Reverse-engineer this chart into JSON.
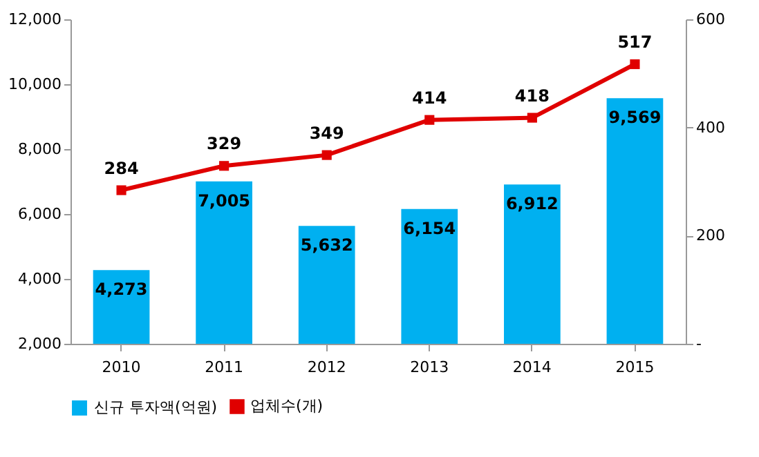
{
  "chart_data": {
    "type": "bar",
    "categories": [
      "2010",
      "2011",
      "2012",
      "2013",
      "2014",
      "2015"
    ],
    "series": [
      {
        "name": "신규 투자액(억원)",
        "color": "#00b0f0",
        "values": [
          4273,
          7005,
          5632,
          6154,
          6912,
          9569
        ],
        "value_labels": [
          "4,273",
          "7,005",
          "5,632",
          "6,154",
          "6,912",
          "9,569"
        ]
      },
      {
        "name": "업체수(개)",
        "type": "line",
        "axis": "y2",
        "color": "#e00000",
        "marker": "square",
        "values": [
          284,
          329,
          349,
          414,
          418,
          517
        ],
        "value_labels": [
          "284",
          "329",
          "349",
          "414",
          "418",
          "517"
        ]
      }
    ],
    "ylim": [
      2000,
      12000
    ],
    "yticks": [
      {
        "value": 2000,
        "label": "2,000"
      },
      {
        "value": 4000,
        "label": "4,000"
      },
      {
        "value": 6000,
        "label": "6,000"
      },
      {
        "value": 8000,
        "label": "8,000"
      },
      {
        "value": 10000,
        "label": "10,000"
      },
      {
        "value": 12000,
        "label": "12,000"
      }
    ],
    "y2lim": [
      0,
      600
    ],
    "y2ticks": [
      {
        "value": 0,
        "label": "-"
      },
      200,
      400,
      600
    ],
    "grid": false,
    "legend": "bottom"
  }
}
